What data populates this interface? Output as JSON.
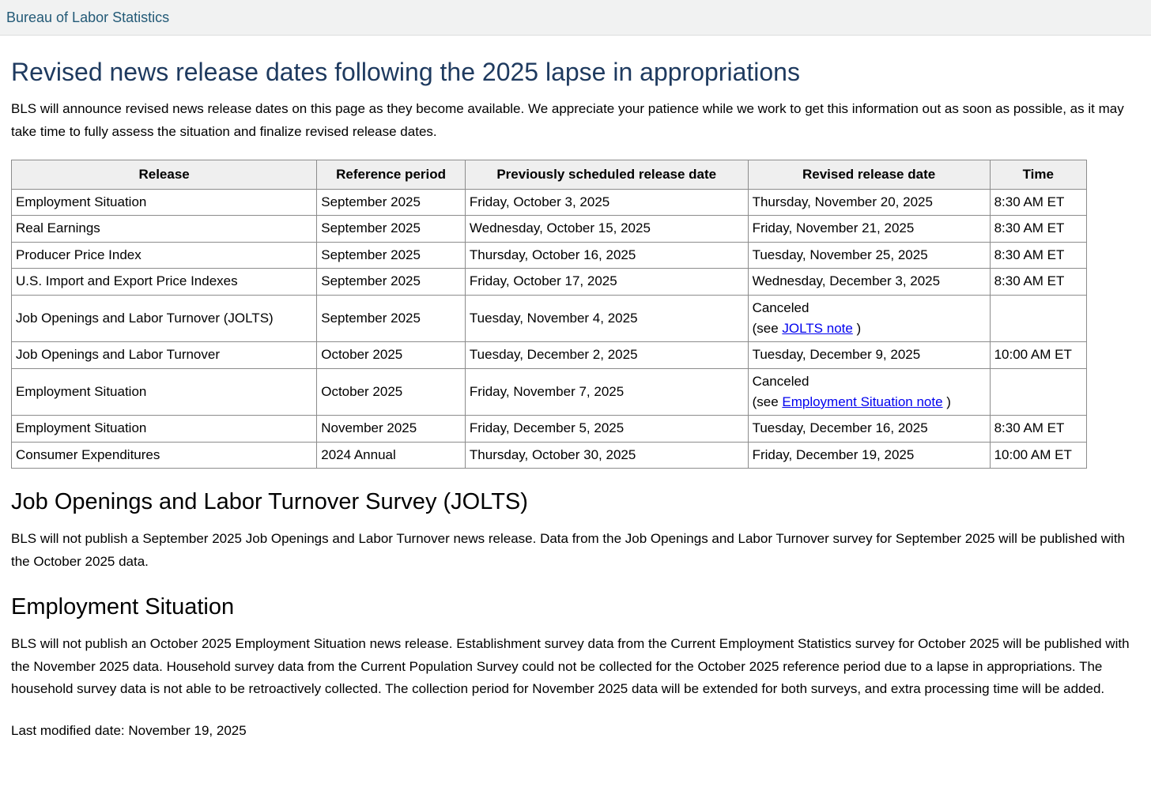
{
  "header": {
    "brand": "Bureau of Labor Statistics"
  },
  "page": {
    "title": "Revised news release dates following the 2025 lapse in appropriations",
    "intro": "BLS will announce revised news release dates on this page as they become available. We appreciate your patience while we work to get this information out as soon as possible, as it may take time to fully assess the situation and finalize revised release dates.",
    "last_modified": "Last modified date: November 19, 2025"
  },
  "colors": {
    "brand_link": "#235a77",
    "title": "#1e3a5f",
    "link": "#0000ee",
    "table_border": "#8c8c8c",
    "table_header_bg": "#efefef",
    "topbar_bg": "#f1f2f2"
  },
  "table": {
    "headers": [
      "Release",
      "Reference period",
      "Previously scheduled release date",
      "Revised release date",
      "Time"
    ],
    "rows": [
      {
        "release": "Employment Situation",
        "period": "September 2025",
        "previous": "Friday, October 3, 2025",
        "revised": "Thursday, November 20, 2025",
        "time": "8:30 AM ET"
      },
      {
        "release": "Real Earnings",
        "period": "September 2025",
        "previous": "Wednesday, October 15, 2025",
        "revised": "Friday, November 21, 2025",
        "time": "8:30 AM ET"
      },
      {
        "release": "Producer Price Index",
        "period": "September 2025",
        "previous": "Thursday, October 16, 2025",
        "revised": "Tuesday, November 25, 2025",
        "time": "8:30 AM ET"
      },
      {
        "release": "U.S. Import and Export Price Indexes",
        "period": "September 2025",
        "previous": "Friday, October 17, 2025",
        "revised": "Wednesday, December 3, 2025",
        "time": "8:30 AM ET"
      },
      {
        "release": "Job Openings and Labor Turnover (JOLTS)",
        "period": "September 2025",
        "previous": "Tuesday, November 4, 2025",
        "revised": "Canceled",
        "note_prefix": "(see ",
        "note_link": "JOLTS note",
        "note_suffix": " )",
        "time": ""
      },
      {
        "release": "Job Openings and Labor Turnover",
        "period": "October 2025",
        "previous": "Tuesday, December 2, 2025",
        "revised": "Tuesday, December 9, 2025",
        "time": "10:00 AM ET"
      },
      {
        "release": "Employment Situation",
        "period": "October 2025",
        "previous": "Friday, November 7, 2025",
        "revised": "Canceled",
        "note_prefix": "(see ",
        "note_link": "Employment Situation note",
        "note_suffix": " )",
        "time": ""
      },
      {
        "release": "Employment Situation",
        "period": "November 2025",
        "previous": "Friday, December 5, 2025",
        "revised": "Tuesday, December 16, 2025",
        "time": "8:30 AM ET"
      },
      {
        "release": "Consumer Expenditures",
        "period": "2024 Annual",
        "previous": "Thursday, October 30, 2025",
        "revised": "Friday, December 19, 2025",
        "time": "10:00 AM ET"
      }
    ]
  },
  "sections": [
    {
      "heading": "Job Openings and Labor Turnover Survey (JOLTS)",
      "body": "BLS will not publish a September 2025 Job Openings and Labor Turnover news release. Data from the Job Openings and Labor Turnover survey for September 2025 will be published with the October 2025 data."
    },
    {
      "heading": "Employment Situation",
      "body": "BLS will not publish an October 2025 Employment Situation news release. Establishment survey data from the Current Employment Statistics survey for October 2025 will be published with the November 2025 data. Household survey data from the Current Population Survey could not be collected for the October 2025 reference period due to a lapse in appropriations. The household survey data is not able to be retroactively collected. The collection period for November 2025 data will be extended for both surveys, and extra processing time will be added."
    }
  ]
}
